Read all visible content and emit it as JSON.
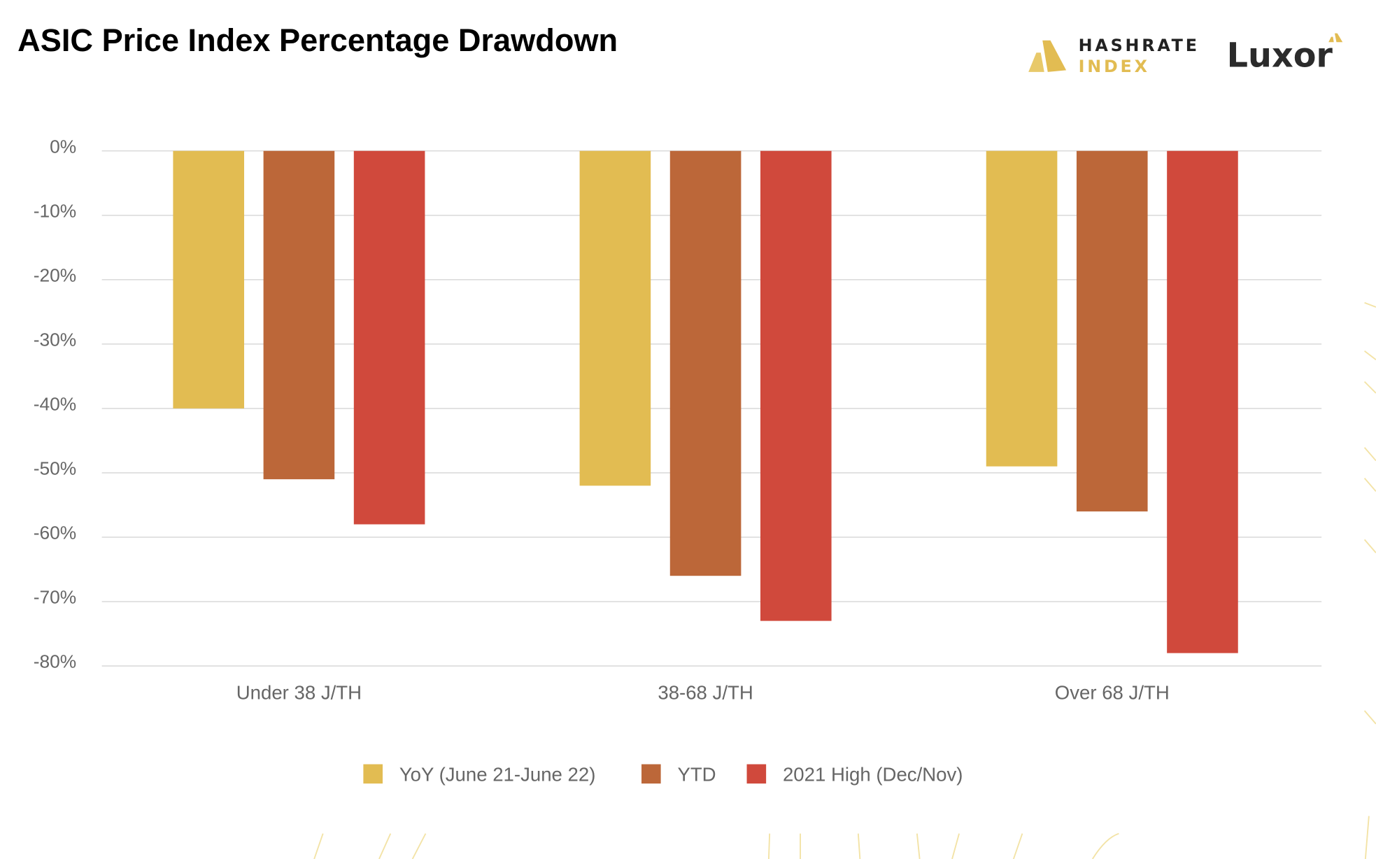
{
  "chart_data": {
    "type": "bar",
    "title": "ASIC Price Index Percentage Drawdown",
    "xlabel": "",
    "ylabel": "",
    "ylim": [
      -80,
      0
    ],
    "yticks": [
      0,
      -10,
      -20,
      -30,
      -40,
      -50,
      -60,
      -70,
      -80
    ],
    "ytick_labels": [
      "0%",
      "-10%",
      "-20%",
      "-30%",
      "-40%",
      "-50%",
      "-60%",
      "-70%",
      "-80%"
    ],
    "grid": true,
    "legend_position": "bottom",
    "categories": [
      "Under 38 J/TH",
      "38-68 J/TH",
      "Over 68 J/TH"
    ],
    "series": [
      {
        "name": "YoY (June 21-June 22)",
        "color": "#E2BC52",
        "values": [
          -40,
          -52,
          -49
        ]
      },
      {
        "name": "YTD",
        "color": "#BC6739",
        "values": [
          -51,
          -66,
          -56
        ]
      },
      {
        "name": "2021 High (Dec/Nov)",
        "color": "#D0493C",
        "values": [
          -58,
          -73,
          -78
        ]
      }
    ]
  },
  "logos": {
    "hashrate_line1": "HASHRATE",
    "hashrate_line2": "INDEX",
    "luxor": "Luxor",
    "gold": "#E2BC52"
  }
}
